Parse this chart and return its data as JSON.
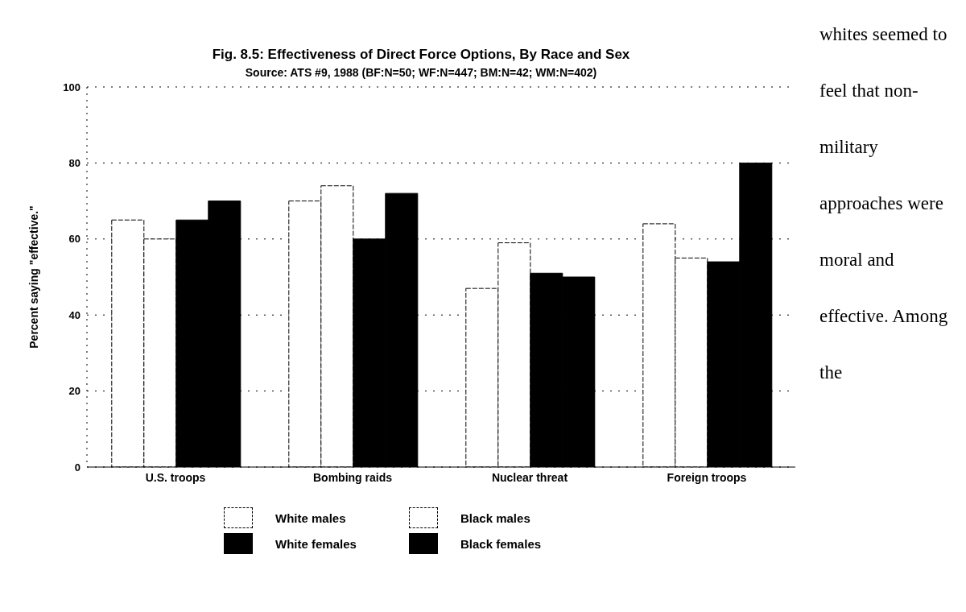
{
  "chart_data": {
    "type": "bar",
    "title": "Fig. 8.5: Effectiveness of Direct Force Options, By Race and Sex",
    "subtitle": "Source: ATS #9, 1988 (BF:N=50; WF:N=447; BM:N=42; WM:N=402)",
    "ylabel": "Percent saying \"effective.\"",
    "categories": [
      "U.S. troops",
      "Bombing raids",
      "Nuclear threat",
      "Foreign troops"
    ],
    "series": [
      {
        "name": "White males",
        "color": "#ffffff",
        "values": [
          65,
          70,
          47,
          64
        ]
      },
      {
        "name": "Black males",
        "color": "#ffffff",
        "values": [
          60,
          74,
          59,
          55
        ]
      },
      {
        "name": "White females",
        "color": "#000000",
        "values": [
          65,
          60,
          51,
          54
        ]
      },
      {
        "name": "Black females",
        "color": "#000000",
        "values": [
          70,
          72,
          50,
          80
        ]
      }
    ],
    "ylim": [
      0,
      100
    ],
    "yticks": [
      0,
      20,
      40,
      60,
      80,
      100
    ],
    "grid": "y",
    "legend": "bottom",
    "annotations": [
      "whites seemed to feel that non-military approaches were moral and effective. Among the"
    ]
  }
}
